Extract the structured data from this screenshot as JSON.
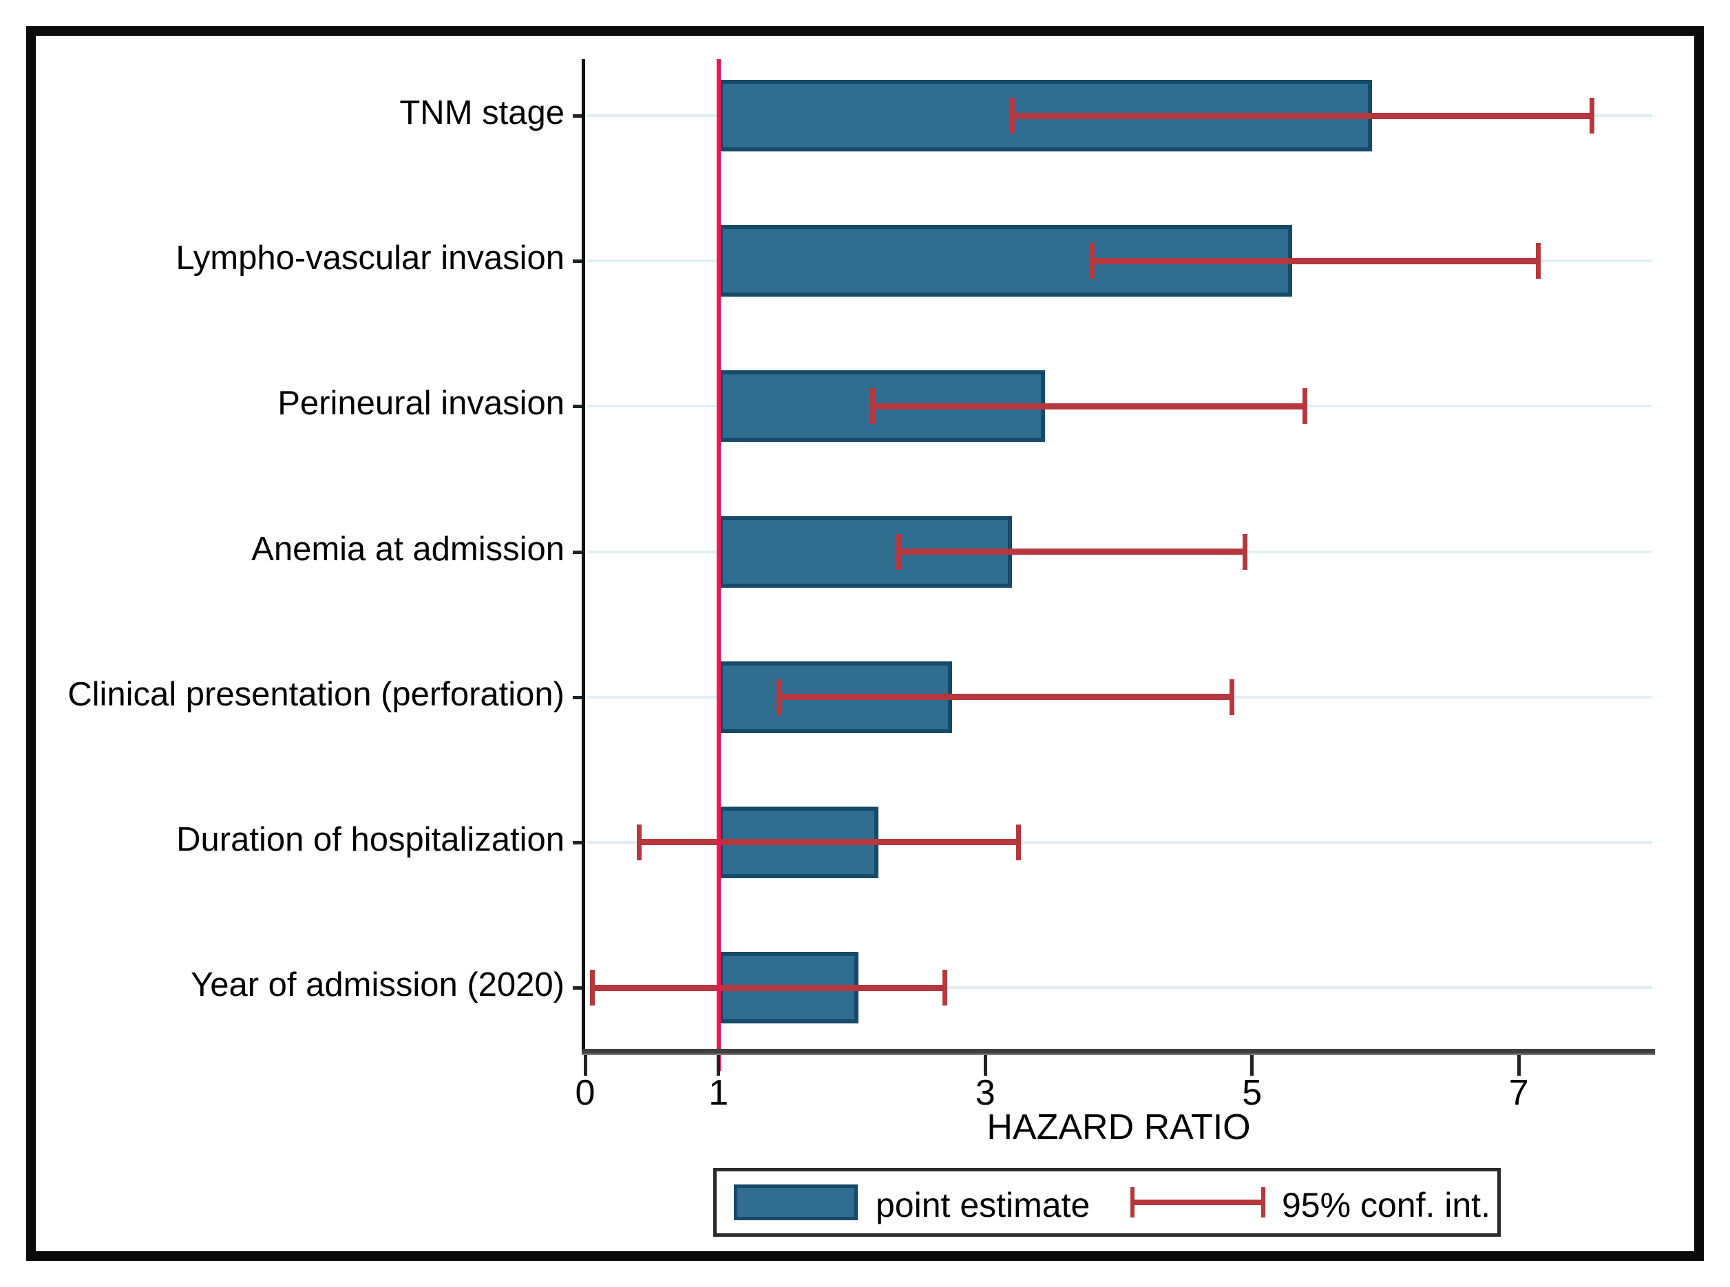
{
  "chart_data": {
    "type": "bar",
    "orientation": "horizontal",
    "title": "",
    "xlabel": "HAZARD RATIO",
    "ylabel": "",
    "xlim": [
      0,
      8
    ],
    "xticks": [
      0,
      1,
      3,
      5,
      7
    ],
    "reference_line_x": 1,
    "grid": "horizontal-light",
    "categories": [
      "TNM stage",
      "Lympho-vascular invasion",
      "Perineural invasion",
      "Anemia at admission",
      "Clinical presentation (perforation)",
      "Duration of hospitalization",
      "Year of admission (2020)"
    ],
    "series": [
      {
        "name": "point estimate",
        "role": "bar",
        "values": [
          5.9,
          5.3,
          3.45,
          3.2,
          2.75,
          2.2,
          2.05
        ]
      },
      {
        "name": "95% conf. int.",
        "role": "error-bar",
        "ci_low": [
          3.2,
          3.8,
          2.15,
          2.35,
          1.45,
          0.4,
          0.05
        ],
        "ci_high": [
          7.55,
          7.15,
          5.4,
          4.95,
          4.85,
          3.25,
          2.7
        ]
      }
    ],
    "legend": {
      "position": "bottom-center",
      "entries": [
        "point estimate",
        "95% conf. int."
      ]
    },
    "colors": {
      "bar_fill": "#2F6E91",
      "bar_border": "#164A69",
      "ci": "#B6373D",
      "reference_line": "#EE1550",
      "gridline": "#E2EEF3",
      "x_axis_dark": "#3F3F3F",
      "x_axis_light": "#8A8A8A",
      "y_axis": "#111111",
      "tick": "#222222",
      "text": "#000000",
      "frame": "#0A0A0A"
    }
  }
}
